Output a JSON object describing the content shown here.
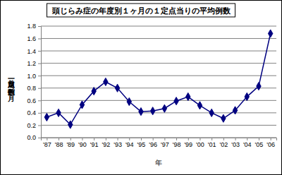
{
  "chart_data": {
    "type": "line",
    "title": "頭じらみ症の年度別１ヶ月の１定点当りの平均例数",
    "x_label": "年",
    "y_label": "一定点当り例数／月",
    "categories": [
      "'87",
      "'88",
      "'89",
      "'90",
      "'91",
      "'92",
      "'93",
      "'94",
      "'95",
      "'96",
      "'97",
      "'98",
      "'99",
      "'00",
      "'01",
      "'02",
      "'03",
      "'04",
      "'05",
      "'06"
    ],
    "values": [
      0.33,
      0.4,
      0.21,
      0.53,
      0.75,
      0.9,
      0.8,
      0.58,
      0.42,
      0.43,
      0.47,
      0.59,
      0.66,
      0.52,
      0.4,
      0.31,
      0.44,
      0.66,
      0.83,
      1.68
    ],
    "color": "#000080",
    "marker": "diamond",
    "ylim": [
      0,
      1.8
    ],
    "yticks": [
      {
        "value": 0,
        "label": "0.0"
      },
      0.2,
      0.4,
      0.6,
      0.8,
      {
        "value": 1,
        "label": "1.0"
      },
      1.2,
      1.4,
      1.6,
      1.8
    ],
    "grid": true
  }
}
